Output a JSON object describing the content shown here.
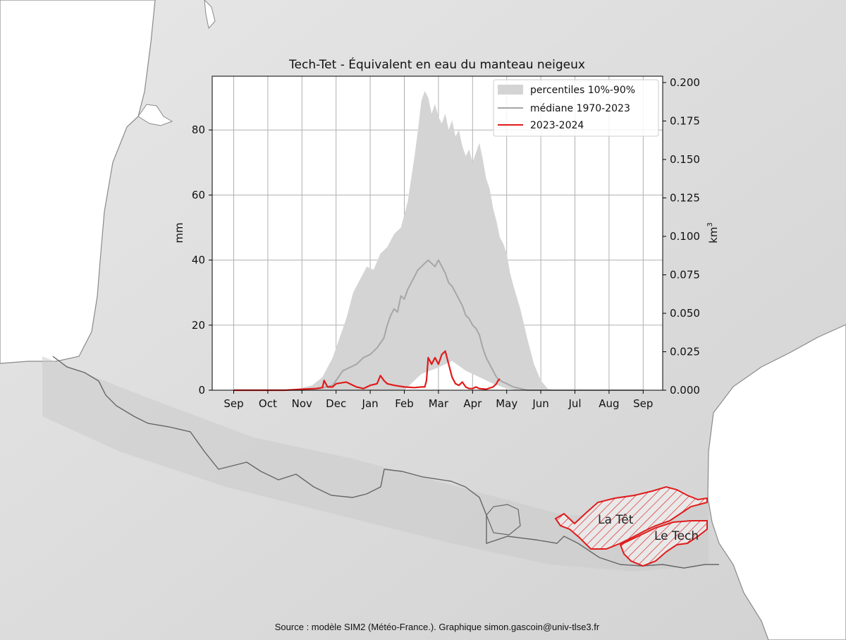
{
  "chart_data": {
    "type": "area",
    "title": "Tech-Tet - Équivalent en eau du manteau neigeux",
    "ylabel": "mm",
    "y2label_base": "km",
    "y2label_exp": "3",
    "ylim": [
      0,
      96
    ],
    "y2lim": [
      0,
      0.2
    ],
    "y_ticks": [
      "0",
      "20",
      "40",
      "60",
      "80"
    ],
    "y2_ticks": [
      "0.000",
      "0.025",
      "0.050",
      "0.075",
      "0.100",
      "0.125",
      "0.150",
      "0.175",
      "0.200"
    ],
    "x_ticks": [
      "Sep",
      "Oct",
      "Nov",
      "Dec",
      "Jan",
      "Feb",
      "Mar",
      "Apr",
      "May",
      "Jun",
      "Jul",
      "Aug",
      "Sep"
    ],
    "x_unit": "months since September 1",
    "grid": true,
    "legend_position": "top-right",
    "legend": [
      "percentiles 10%-90%",
      "médiane 1970-2023",
      "2023-2024"
    ],
    "series": [
      {
        "name": "percentiles 10%-90%",
        "kind": "band",
        "color": "#d4d4d4",
        "upper": [
          [
            0,
            0
          ],
          [
            1.5,
            0
          ],
          [
            1.9,
            0.5
          ],
          [
            2.3,
            1.5
          ],
          [
            2.6,
            4
          ],
          [
            2.9,
            10
          ],
          [
            3.1,
            16
          ],
          [
            3.3,
            22
          ],
          [
            3.5,
            30
          ],
          [
            3.7,
            34
          ],
          [
            3.9,
            38
          ],
          [
            4.1,
            37
          ],
          [
            4.3,
            42
          ],
          [
            4.5,
            44
          ],
          [
            4.7,
            48
          ],
          [
            4.9,
            50
          ],
          [
            5.1,
            58
          ],
          [
            5.3,
            72
          ],
          [
            5.4,
            80
          ],
          [
            5.5,
            89
          ],
          [
            5.6,
            92
          ],
          [
            5.7,
            90
          ],
          [
            5.8,
            85
          ],
          [
            5.9,
            88
          ],
          [
            6.0,
            84
          ],
          [
            6.1,
            82
          ],
          [
            6.2,
            85
          ],
          [
            6.3,
            80
          ],
          [
            6.4,
            83
          ],
          [
            6.5,
            78
          ],
          [
            6.6,
            80
          ],
          [
            6.7,
            75
          ],
          [
            6.8,
            72
          ],
          [
            6.9,
            74
          ],
          [
            7.0,
            70
          ],
          [
            7.1,
            73
          ],
          [
            7.2,
            76
          ],
          [
            7.3,
            71
          ],
          [
            7.4,
            65
          ],
          [
            7.5,
            62
          ],
          [
            7.6,
            56
          ],
          [
            7.7,
            52
          ],
          [
            7.8,
            47
          ],
          [
            7.9,
            45
          ],
          [
            8.0,
            42
          ],
          [
            8.1,
            36
          ],
          [
            8.2,
            32
          ],
          [
            8.4,
            25
          ],
          [
            8.6,
            16
          ],
          [
            8.8,
            8
          ],
          [
            9.0,
            3
          ],
          [
            9.2,
            0.5
          ],
          [
            9.4,
            0
          ],
          [
            12,
            0
          ]
        ],
        "lower": [
          [
            0,
            0
          ],
          [
            5.0,
            0
          ],
          [
            5.5,
            5
          ],
          [
            6.0,
            7
          ],
          [
            6.4,
            9
          ],
          [
            6.8,
            6
          ],
          [
            7.2,
            4
          ],
          [
            7.6,
            2
          ],
          [
            8.0,
            0.5
          ],
          [
            8.3,
            0
          ],
          [
            12,
            0
          ]
        ]
      },
      {
        "name": "médiane 1970-2023",
        "kind": "line",
        "color": "#a6a6a6",
        "points": [
          [
            0,
            0
          ],
          [
            2.0,
            0
          ],
          [
            2.5,
            0.5
          ],
          [
            2.9,
            1.5
          ],
          [
            3.0,
            3
          ],
          [
            3.2,
            6
          ],
          [
            3.4,
            7
          ],
          [
            3.6,
            8
          ],
          [
            3.8,
            10
          ],
          [
            4.0,
            11
          ],
          [
            4.2,
            13
          ],
          [
            4.4,
            16
          ],
          [
            4.5,
            20
          ],
          [
            4.6,
            23
          ],
          [
            4.7,
            25
          ],
          [
            4.8,
            24
          ],
          [
            4.9,
            29
          ],
          [
            5.0,
            28
          ],
          [
            5.1,
            31
          ],
          [
            5.2,
            33
          ],
          [
            5.3,
            35
          ],
          [
            5.4,
            37
          ],
          [
            5.5,
            38
          ],
          [
            5.6,
            39
          ],
          [
            5.7,
            40
          ],
          [
            5.8,
            39
          ],
          [
            5.9,
            38
          ],
          [
            6.0,
            40
          ],
          [
            6.1,
            38
          ],
          [
            6.2,
            36
          ],
          [
            6.3,
            33
          ],
          [
            6.4,
            32
          ],
          [
            6.5,
            30
          ],
          [
            6.6,
            28
          ],
          [
            6.7,
            26
          ],
          [
            6.8,
            23
          ],
          [
            6.9,
            22
          ],
          [
            7.0,
            20
          ],
          [
            7.1,
            19
          ],
          [
            7.2,
            17
          ],
          [
            7.3,
            13
          ],
          [
            7.4,
            10
          ],
          [
            7.5,
            8
          ],
          [
            7.6,
            6
          ],
          [
            7.7,
            4
          ],
          [
            7.8,
            3
          ],
          [
            8.0,
            2
          ],
          [
            8.2,
            1
          ],
          [
            8.4,
            0.5
          ],
          [
            8.6,
            0
          ],
          [
            12,
            0
          ]
        ]
      },
      {
        "name": "2023-2024",
        "kind": "line",
        "color": "#e01b1b",
        "points": [
          [
            0,
            0
          ],
          [
            1.5,
            0
          ],
          [
            2.0,
            0.3
          ],
          [
            2.4,
            0.5
          ],
          [
            2.6,
            0.8
          ],
          [
            2.65,
            3
          ],
          [
            2.75,
            1
          ],
          [
            2.9,
            1
          ],
          [
            3.0,
            2
          ],
          [
            3.3,
            2.5
          ],
          [
            3.5,
            1.5
          ],
          [
            3.6,
            1
          ],
          [
            3.8,
            0.5
          ],
          [
            4.0,
            1.5
          ],
          [
            4.2,
            2
          ],
          [
            4.3,
            4.5
          ],
          [
            4.4,
            3
          ],
          [
            4.5,
            2
          ],
          [
            4.7,
            1.5
          ],
          [
            5.0,
            1
          ],
          [
            5.3,
            0.8
          ],
          [
            5.5,
            1
          ],
          [
            5.6,
            1
          ],
          [
            5.65,
            3
          ],
          [
            5.7,
            10
          ],
          [
            5.8,
            8
          ],
          [
            5.9,
            10
          ],
          [
            6.0,
            8
          ],
          [
            6.1,
            11
          ],
          [
            6.2,
            12
          ],
          [
            6.3,
            8
          ],
          [
            6.4,
            4
          ],
          [
            6.5,
            2
          ],
          [
            6.6,
            1.5
          ],
          [
            6.7,
            2.5
          ],
          [
            6.8,
            1
          ],
          [
            6.9,
            0.5
          ],
          [
            7.0,
            0.5
          ],
          [
            7.1,
            1
          ],
          [
            7.2,
            0.5
          ],
          [
            7.4,
            0.3
          ],
          [
            7.6,
            1
          ],
          [
            7.7,
            2
          ],
          [
            7.75,
            3
          ],
          [
            7.8,
            3.5
          ]
        ]
      }
    ]
  },
  "map": {
    "basins": [
      "La Têt",
      "Le Tech"
    ],
    "basin_color": "#e01b1b"
  },
  "source": "Source : modèle SIM2 (Météo-France.). Graphique simon.gascoin@univ-tlse3.fr"
}
